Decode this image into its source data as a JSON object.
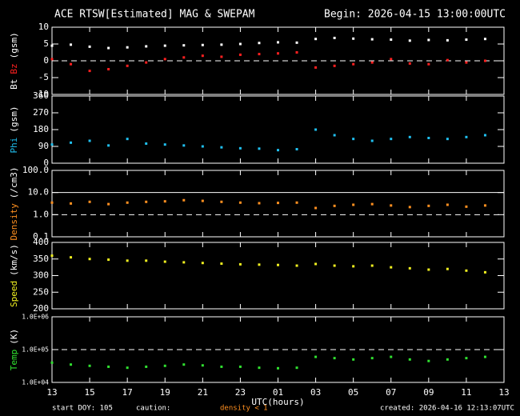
{
  "title": "ACE RTSW[Estimated] MAG & SWEPAM",
  "subtitle": "Begin: 2026-04-15 13:00:00UTC",
  "footer": {
    "start": "start DOY: 105",
    "caution": "caution:",
    "caution_note": "density < 1",
    "created": "created: 2026-04-16 12:13:07UTC"
  },
  "chart_data": [
    {
      "type": "scatter",
      "unit": "(gsm)",
      "ylim": [
        -10,
        10
      ],
      "yticks": [
        -10,
        -5,
        0,
        5,
        10
      ],
      "ref_lines": [
        {
          "value": 0,
          "style": "dashed"
        }
      ],
      "x": [
        0,
        1,
        2,
        3,
        4,
        5,
        6,
        7,
        8,
        9,
        10,
        11,
        12,
        13,
        14,
        15,
        16,
        17,
        18,
        19,
        20,
        21,
        22,
        23
      ],
      "series": [
        {
          "name": "Bt",
          "color": "#ffffff",
          "values": [
            4.5,
            4.8,
            4.2,
            3.8,
            4.0,
            4.3,
            4.5,
            4.6,
            4.7,
            4.8,
            5.0,
            5.3,
            5.5,
            5.4,
            6.5,
            6.8,
            6.6,
            6.4,
            6.3,
            6.0,
            6.2,
            6.1,
            6.3,
            6.5
          ]
        },
        {
          "name": "Bz",
          "color": "#ff2020",
          "values": [
            0.5,
            -1.0,
            -3.0,
            -2.5,
            -1.5,
            -0.5,
            0.5,
            1.0,
            1.5,
            1.2,
            1.8,
            2.0,
            2.2,
            2.5,
            -2.0,
            -1.5,
            -1.0,
            -0.5,
            0.5,
            -0.8,
            -1.0,
            0.2,
            -0.5,
            0.0
          ]
        }
      ]
    },
    {
      "type": "scatter",
      "unit": "(gsm)",
      "ylim": [
        0,
        360
      ],
      "yticks": [
        0,
        90,
        180,
        270,
        360
      ],
      "ref_lines": [],
      "x": [
        0,
        1,
        2,
        3,
        4,
        5,
        6,
        7,
        8,
        9,
        10,
        11,
        12,
        13,
        14,
        15,
        16,
        17,
        18,
        19,
        20,
        21,
        22,
        23
      ],
      "series": [
        {
          "name": "Phi",
          "color": "#20c0f0",
          "values": [
            100,
            110,
            120,
            95,
            130,
            105,
            100,
            95,
            90,
            85,
            80,
            78,
            70,
            75,
            180,
            150,
            130,
            120,
            130,
            140,
            135,
            130,
            140,
            150
          ]
        }
      ]
    },
    {
      "type": "scatter",
      "unit": "(/cm3)",
      "log": true,
      "ylim": [
        0.1,
        100
      ],
      "yticks": [
        0.1,
        {
          "value": 1,
          "label": "1.0"
        },
        {
          "value": 10,
          "label": "10.0"
        },
        {
          "value": 100,
          "label": "100.0"
        }
      ],
      "ref_lines": [
        {
          "value": 1,
          "style": "dashed"
        },
        {
          "value": 10,
          "style": "solid"
        }
      ],
      "x": [
        0,
        1,
        2,
        3,
        4,
        5,
        6,
        7,
        8,
        9,
        10,
        11,
        12,
        13,
        14,
        15,
        16,
        17,
        18,
        19,
        20,
        21,
        22,
        23
      ],
      "series": [
        {
          "name": "Density",
          "color": "#ff9020",
          "values": [
            3.5,
            3.2,
            3.8,
            3.0,
            3.5,
            3.8,
            4.0,
            4.5,
            4.2,
            3.8,
            3.5,
            3.3,
            3.4,
            3.5,
            2.0,
            2.5,
            2.8,
            3.0,
            2.6,
            2.2,
            2.5,
            2.8,
            2.3,
            2.6
          ]
        }
      ]
    },
    {
      "type": "scatter",
      "unit": "(km/s)",
      "ylim": [
        200,
        400
      ],
      "yticks": [
        200,
        250,
        300,
        350,
        400
      ],
      "ref_lines": [],
      "x": [
        0,
        1,
        2,
        3,
        4,
        5,
        6,
        7,
        8,
        9,
        10,
        11,
        12,
        13,
        14,
        15,
        16,
        17,
        18,
        19,
        20,
        21,
        22,
        23
      ],
      "series": [
        {
          "name": "Speed",
          "color": "#f0f020",
          "values": [
            360,
            355,
            350,
            348,
            345,
            345,
            342,
            340,
            338,
            336,
            334,
            333,
            332,
            330,
            335,
            330,
            328,
            330,
            325,
            322,
            318,
            320,
            315,
            310
          ]
        }
      ]
    },
    {
      "type": "scatter",
      "unit": "(K)",
      "log": true,
      "ylim": [
        10000,
        1000000
      ],
      "yticks": [
        {
          "value": 10000,
          "label": "1.0E+04"
        },
        {
          "value": 100000,
          "label": "1.0E+05"
        },
        {
          "value": 1000000,
          "label": "1.0E+06"
        }
      ],
      "ref_lines": [
        {
          "value": 100000,
          "style": "dashed"
        }
      ],
      "xlabel": "UTC(hours)",
      "xlim": [
        0,
        24
      ],
      "xticks": [
        {
          "value": 0,
          "label": "13"
        },
        {
          "value": 2,
          "label": "15"
        },
        {
          "value": 4,
          "label": "17"
        },
        {
          "value": 6,
          "label": "19"
        },
        {
          "value": 8,
          "label": "21"
        },
        {
          "value": 10,
          "label": "23"
        },
        {
          "value": 12,
          "label": "01"
        },
        {
          "value": 14,
          "label": "03"
        },
        {
          "value": 16,
          "label": "05"
        },
        {
          "value": 18,
          "label": "07"
        },
        {
          "value": 20,
          "label": "09"
        },
        {
          "value": 22,
          "label": "11"
        },
        {
          "value": 24,
          "label": "13"
        }
      ],
      "x": [
        0,
        1,
        2,
        3,
        4,
        5,
        6,
        7,
        8,
        9,
        10,
        11,
        12,
        13,
        14,
        15,
        16,
        17,
        18,
        19,
        20,
        21,
        22,
        23
      ],
      "series": [
        {
          "name": "Temp",
          "color": "#30e030",
          "values": [
            40000,
            35000,
            32000,
            30000,
            28000,
            30000,
            32000,
            35000,
            33000,
            30000,
            30000,
            28000,
            27000,
            28000,
            60000,
            55000,
            50000,
            55000,
            60000,
            50000,
            45000,
            50000,
            55000,
            60000
          ]
        }
      ]
    }
  ]
}
